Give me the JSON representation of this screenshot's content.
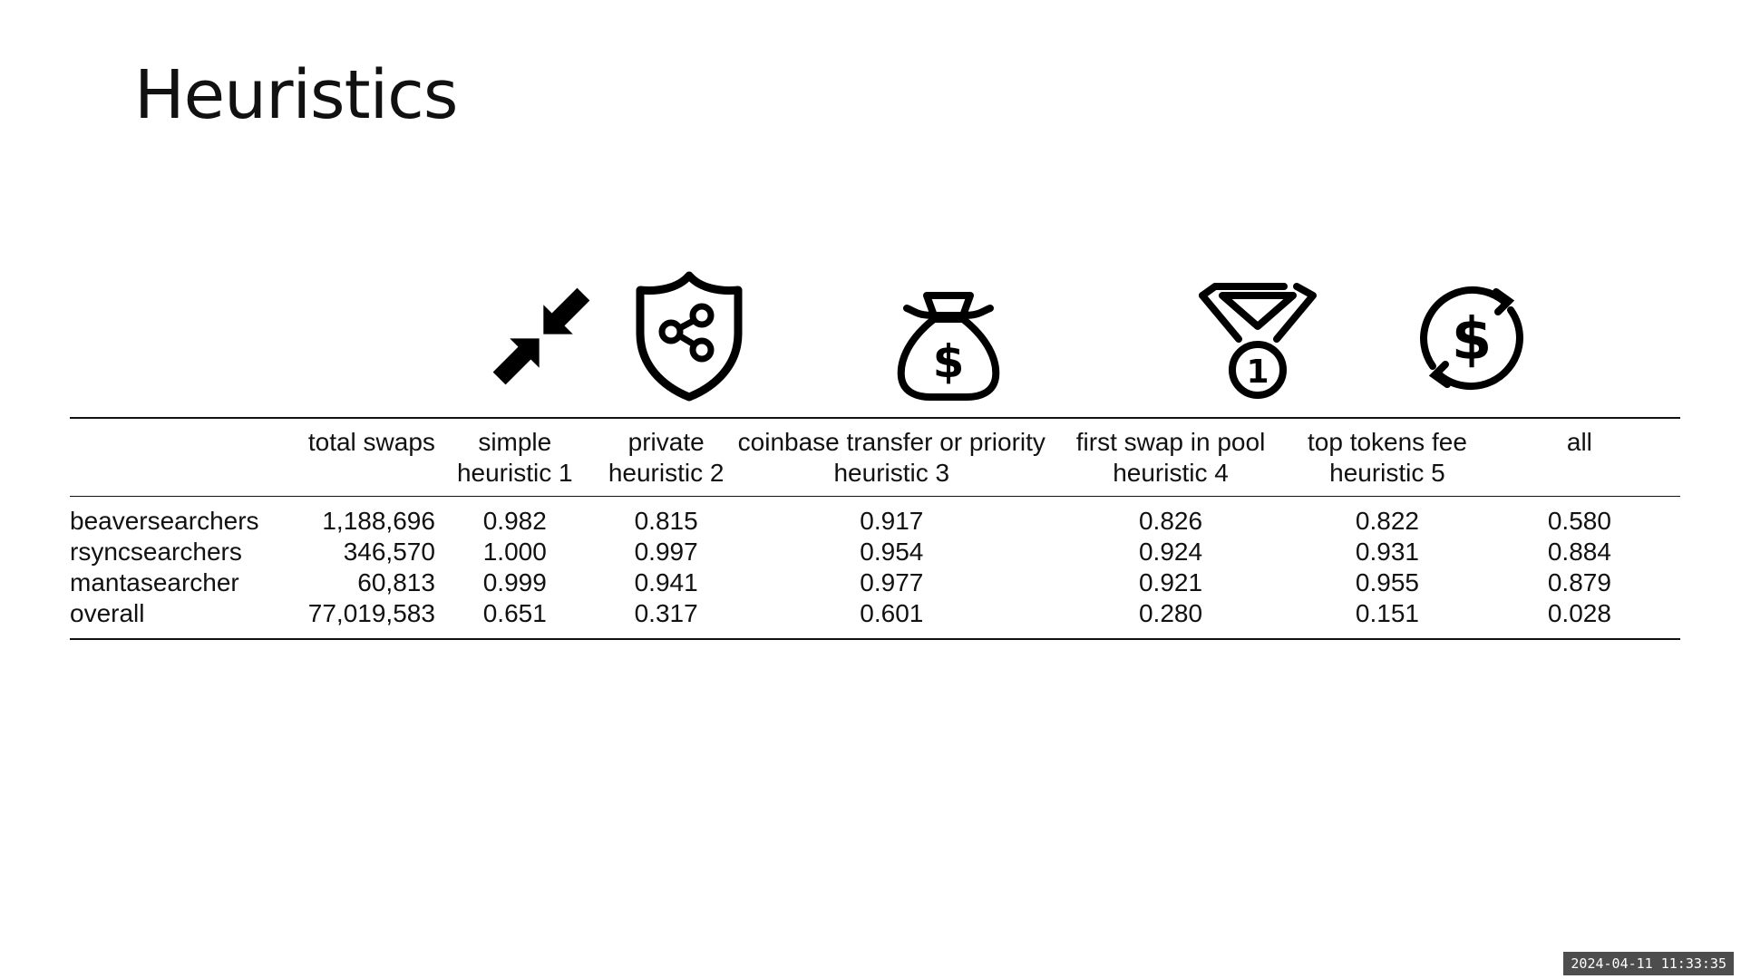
{
  "slide": {
    "title": "Heuristics"
  },
  "icons": {
    "heuristic_1": "shrink-arrows-icon",
    "heuristic_2": "shield-share-icon",
    "heuristic_3": "money-bag-icon",
    "heuristic_4": "medal-icon",
    "heuristic_5": "dollar-refresh-icon"
  },
  "table": {
    "headers": {
      "row_label": "",
      "total_swaps": "total swaps",
      "h1_line1": "simple",
      "h1_line2": "heuristic 1",
      "h2_line1": "private",
      "h2_line2": "heuristic 2",
      "h3_line1": "coinbase transfer or priority",
      "h3_line2": "heuristic 3",
      "h4_line1": "first swap in pool",
      "h4_line2": "heuristic 4",
      "h5_line1": "top tokens fee",
      "h5_line2": "heuristic 5",
      "all": "all"
    },
    "rows": [
      {
        "name": "beaversearchers",
        "total_swaps": "1,188,696",
        "h1": "0.982",
        "h2": "0.815",
        "h3": "0.917",
        "h4": "0.826",
        "h5": "0.822",
        "all": "0.580"
      },
      {
        "name": "rsyncsearchers",
        "total_swaps": "346,570",
        "h1": "1.000",
        "h2": "0.997",
        "h3": "0.954",
        "h4": "0.924",
        "h5": "0.931",
        "all": "0.884"
      },
      {
        "name": "mantasearcher",
        "total_swaps": "60,813",
        "h1": "0.999",
        "h2": "0.941",
        "h3": "0.977",
        "h4": "0.921",
        "h5": "0.955",
        "all": "0.879"
      },
      {
        "name": "overall",
        "total_swaps": "77,019,583",
        "h1": "0.651",
        "h2": "0.317",
        "h3": "0.601",
        "h4": "0.280",
        "h5": "0.151",
        "all": "0.028"
      }
    ]
  },
  "timestamp": "2024-04-11 11:33:35"
}
